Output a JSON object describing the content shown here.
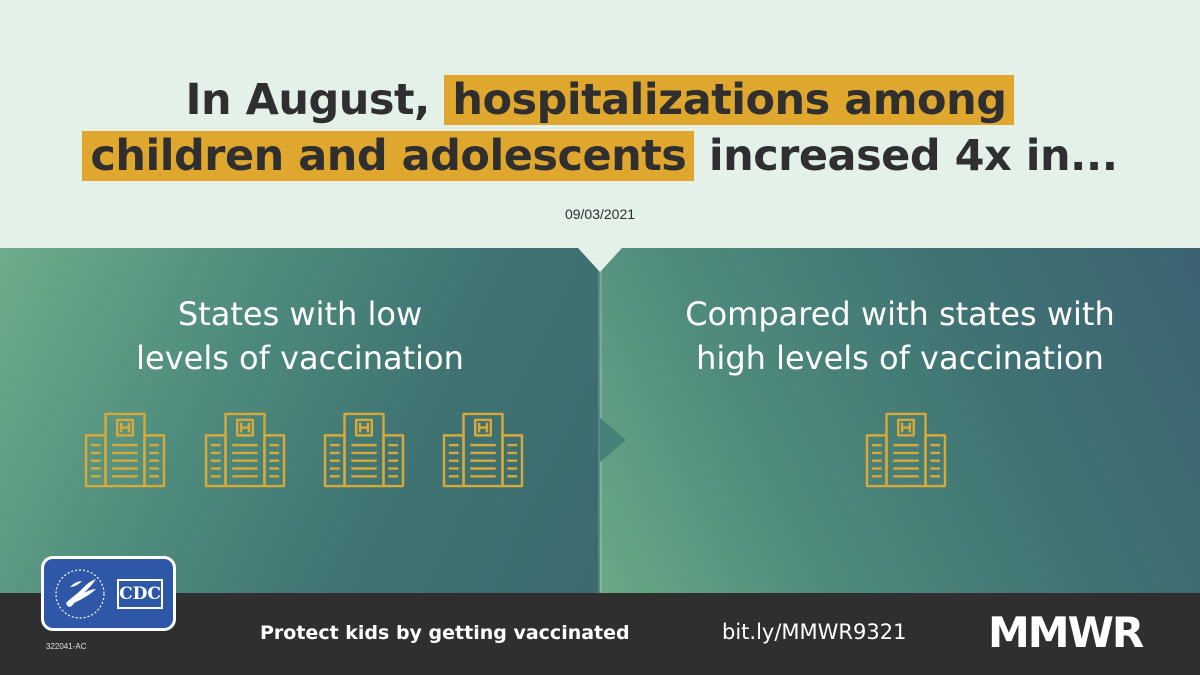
{
  "headline": {
    "line1_plain": "In August, ",
    "line1_highlight": "hospitalizations among",
    "line2_highlight": "children and adolescents",
    "line2_plain": " increased 4x in..."
  },
  "date": "09/03/2021",
  "left_panel": {
    "title_line1": "States with low",
    "title_line2": "levels of vaccination",
    "hospital_count": 4
  },
  "right_panel": {
    "title_line1": "Compared with states with",
    "title_line2": "high levels of vaccination",
    "hospital_count": 1
  },
  "footer": {
    "slogan": "Protect kids by getting vaccinated",
    "link": "bit.ly/MMWR9321",
    "brand": "MMWR",
    "code": "322041-AC"
  },
  "logo": {
    "label": "CDC"
  },
  "colors": {
    "highlight": "#e0a72e",
    "background": "#e3f1e9",
    "footer": "#2f2f2f",
    "hospital_icon": "#d8a838"
  },
  "icons": {
    "hospital": "hospital-building-icon",
    "hhs": "hhs-eagle-icon"
  }
}
